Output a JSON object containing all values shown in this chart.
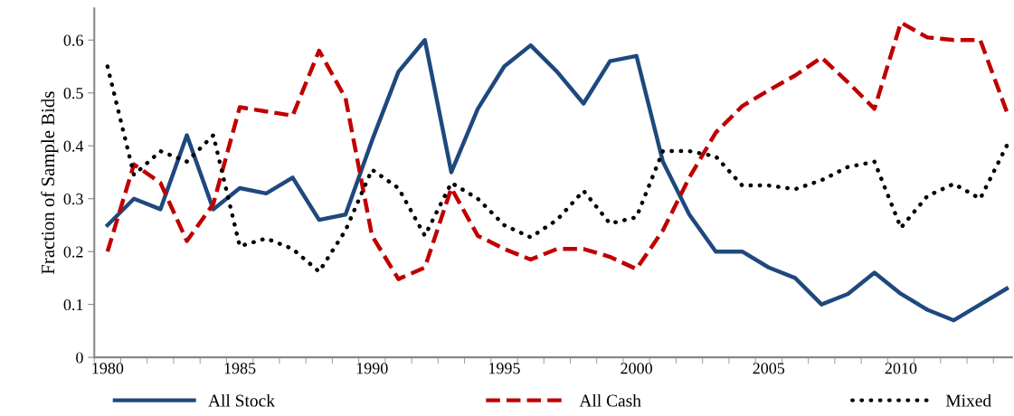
{
  "chart_data": {
    "type": "line",
    "ylabel": "Fraction of Sample Bids",
    "x": [
      1980,
      1981,
      1982,
      1983,
      1984,
      1985,
      1986,
      1987,
      1988,
      1989,
      1990,
      1991,
      1992,
      1993,
      1994,
      1995,
      1996,
      1997,
      1998,
      1999,
      2000,
      2001,
      2002,
      2003,
      2004,
      2005,
      2006,
      2007,
      2008,
      2009,
      2010,
      2011,
      2012,
      2013,
      2014
    ],
    "series": [
      {
        "name": "All Stock",
        "color": "#1f497d",
        "line_style": "solid",
        "values": [
          0.25,
          0.3,
          0.28,
          0.42,
          0.28,
          0.32,
          0.31,
          0.34,
          0.26,
          0.27,
          0.41,
          0.54,
          0.6,
          0.35,
          0.47,
          0.55,
          0.59,
          0.54,
          0.48,
          0.56,
          0.57,
          0.37,
          0.27,
          0.2,
          0.2,
          0.17,
          0.15,
          0.1,
          0.12,
          0.16,
          0.12,
          0.09,
          0.07,
          0.1,
          0.13
        ]
      },
      {
        "name": "All Cash",
        "color": "#c00000",
        "line_style": "dashed",
        "values": [
          0.2,
          0.365,
          0.33,
          0.22,
          0.29,
          0.473,
          0.465,
          0.457,
          0.58,
          0.49,
          0.23,
          0.148,
          0.17,
          0.32,
          0.23,
          0.205,
          0.185,
          0.205,
          0.205,
          0.19,
          0.167,
          0.24,
          0.34,
          0.425,
          0.475,
          0.505,
          0.533,
          0.567,
          0.52,
          0.47,
          0.633,
          0.605,
          0.6,
          0.6,
          0.465
        ]
      },
      {
        "name": "Mixed",
        "color": "#000000",
        "line_style": "dotted",
        "values": [
          0.55,
          0.345,
          0.39,
          0.37,
          0.42,
          0.21,
          0.225,
          0.205,
          0.162,
          0.24,
          0.355,
          0.32,
          0.23,
          0.33,
          0.3,
          0.25,
          0.227,
          0.26,
          0.315,
          0.253,
          0.265,
          0.39,
          0.39,
          0.38,
          0.325,
          0.325,
          0.318,
          0.335,
          0.36,
          0.37,
          0.245,
          0.305,
          0.328,
          0.3,
          0.4
        ]
      }
    ],
    "xlim": [
      1979.5,
      2014.2
    ],
    "xticks": [
      1980,
      1985,
      1990,
      1995,
      2000,
      2005,
      2010,
      {
        "value": 1979.5,
        "label": null
      },
      {
        "value": 1980.5,
        "label": null
      },
      {
        "value": 1981.5,
        "label": null
      },
      {
        "value": 1982.5,
        "label": null
      },
      {
        "value": 1983.5,
        "label": null
      },
      {
        "value": 1984.5,
        "label": null
      },
      {
        "value": 1985.5,
        "label": null
      },
      {
        "value": 1986.5,
        "label": null
      },
      {
        "value": 1987.5,
        "label": null
      },
      {
        "value": 1988.5,
        "label": null
      },
      {
        "value": 1989.5,
        "label": null
      },
      {
        "value": 1990.5,
        "label": null
      },
      {
        "value": 1991.5,
        "label": null
      },
      {
        "value": 1992.5,
        "label": null
      },
      {
        "value": 1993.5,
        "label": null
      },
      {
        "value": 1994.5,
        "label": null
      },
      {
        "value": 1995.5,
        "label": null
      },
      {
        "value": 1996.5,
        "label": null
      },
      {
        "value": 1997.5,
        "label": null
      },
      {
        "value": 1998.5,
        "label": null
      },
      {
        "value": 1999.5,
        "label": null
      },
      {
        "value": 2000.5,
        "label": null
      },
      {
        "value": 2001.5,
        "label": null
      },
      {
        "value": 2002.5,
        "label": null
      },
      {
        "value": 2003.5,
        "label": null
      },
      {
        "value": 2004.5,
        "label": null
      },
      {
        "value": 2005.5,
        "label": null
      },
      {
        "value": 2006.5,
        "label": null
      },
      {
        "value": 2007.5,
        "label": null
      },
      {
        "value": 2008.5,
        "label": null
      },
      {
        "value": 2009.5,
        "label": null
      },
      {
        "value": 2010.5,
        "label": null
      },
      {
        "value": 2011.5,
        "label": null
      },
      {
        "value": 2012.5,
        "label": null
      },
      {
        "value": 2013.5,
        "label": null
      }
    ],
    "ylim": [
      0,
      0.66
    ],
    "yticks": [
      0,
      0.1,
      0.2,
      0.3,
      0.4,
      0.5,
      0.6
    ],
    "grid": false,
    "legend": "bottom",
    "marker": "none"
  }
}
